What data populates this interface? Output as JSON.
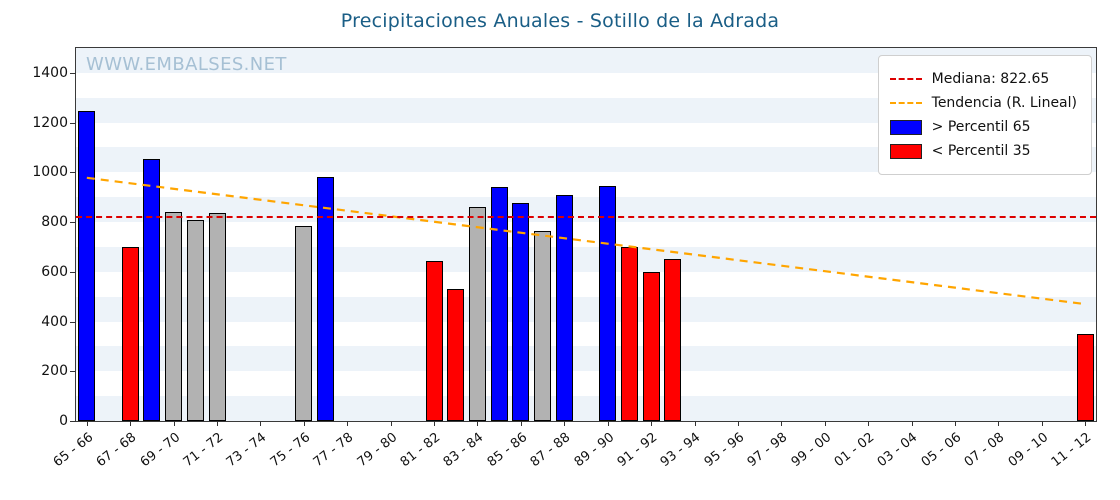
{
  "watermark": "WWW.EMBALSES.NET",
  "chart_data": {
    "type": "bar",
    "title": "Precipitaciones Anuales - Sotillo de la Adrada",
    "xlabel": "",
    "ylabel": "",
    "ylim": [
      0,
      1500
    ],
    "yticks": [
      0,
      200,
      400,
      600,
      800,
      1000,
      1200,
      1400
    ],
    "x_start_year": 65,
    "xtick_labels": [
      "65 - 66",
      "67 - 68",
      "69 - 70",
      "71 - 72",
      "73 - 74",
      "75 - 76",
      "77 - 78",
      "79 - 80",
      "81 - 82",
      "83 - 84",
      "85 - 86",
      "87 - 88",
      "89 - 90",
      "91 - 92",
      "93 - 94",
      "95 - 96",
      "97 - 98",
      "99 - 00",
      "01 - 02",
      "03 - 04",
      "05 - 06",
      "07 - 08",
      "09 - 10",
      "11 - 12"
    ],
    "grid": "horizontal-stripes",
    "legend_position": "top-right",
    "bars": [
      {
        "year": "65 - 66",
        "value": 1245,
        "band": "p65"
      },
      {
        "year": "67 - 68",
        "value": 700,
        "band": "p35"
      },
      {
        "year": "68 - 69",
        "value": 1055,
        "band": "p65"
      },
      {
        "year": "69 - 70",
        "value": 840,
        "band": "mid"
      },
      {
        "year": "70 - 71",
        "value": 810,
        "band": "mid"
      },
      {
        "year": "71 - 72",
        "value": 835,
        "band": "mid"
      },
      {
        "year": "75 - 76",
        "value": 785,
        "band": "mid"
      },
      {
        "year": "76 - 77",
        "value": 980,
        "band": "p65"
      },
      {
        "year": "81 - 82",
        "value": 645,
        "band": "p35"
      },
      {
        "year": "82 - 83",
        "value": 530,
        "band": "p35"
      },
      {
        "year": "83 - 84",
        "value": 860,
        "band": "mid"
      },
      {
        "year": "84 - 85",
        "value": 940,
        "band": "p65"
      },
      {
        "year": "85 - 86",
        "value": 875,
        "band": "p65"
      },
      {
        "year": "86 - 87",
        "value": 765,
        "band": "mid"
      },
      {
        "year": "87 - 88",
        "value": 910,
        "band": "p65"
      },
      {
        "year": "89 - 90",
        "value": 945,
        "band": "p65"
      },
      {
        "year": "90 - 91",
        "value": 700,
        "band": "p35"
      },
      {
        "year": "91 - 92",
        "value": 600,
        "band": "p35"
      },
      {
        "year": "92 - 93",
        "value": 650,
        "band": "p35"
      },
      {
        "year": "11 - 12",
        "value": 350,
        "band": "p35"
      }
    ],
    "median": 822.65,
    "trend": {
      "start_value": 978,
      "end_value": 470
    },
    "legend": {
      "median_label": "Mediana: 822.65",
      "trend_label": "Tendencia (R. Lineal)",
      "p65_label": "> Percentil 65",
      "p35_label": "< Percentil 35"
    },
    "colors": {
      "p65": "#0000ff",
      "p35": "#ff0000",
      "mid": "#b2b2b2",
      "median_line": "#dd0000",
      "trend_line": "#ffa500",
      "title": "#1a5e86",
      "watermark": "#a6c0d4",
      "stripe": "#edf3f9"
    }
  }
}
